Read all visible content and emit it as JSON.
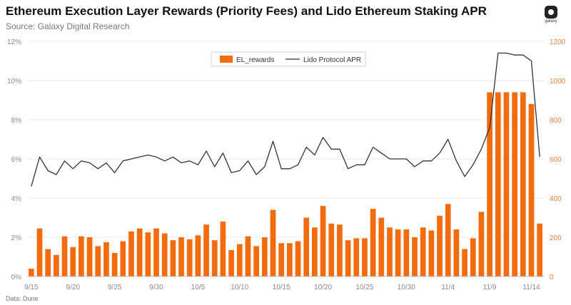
{
  "header": {
    "title": "Ethereum Execution Layer Rewards (Priority Fees) and Lido Ethereum Staking APR",
    "subtitle": "Source: Galaxy Digital Research",
    "logo_text": "galaxy",
    "data_note": "Data: Dune"
  },
  "colors": {
    "bar": "#F26B0F",
    "line": "#333333",
    "axis_text": "#888888",
    "right_axis_text": "#E8833A",
    "grid": "#e8e8e8"
  },
  "chart_data": {
    "type": "bar+line",
    "legend_position": "top-center",
    "grid": true,
    "legend": [
      "EL_rewards",
      "Lido Protocol APR"
    ],
    "left_axis": {
      "ticks": [
        "0%",
        "2%",
        "4%",
        "6%",
        "8%",
        "10%",
        "12%"
      ],
      "range": [
        0,
        12
      ]
    },
    "right_axis": {
      "ticks": [
        "0",
        "200",
        "400",
        "600",
        "800",
        "1000",
        "1200"
      ],
      "range": [
        0,
        1200
      ]
    },
    "x_tick_labels": [
      "9/15",
      "9/20",
      "9/25",
      "9/30",
      "10/5",
      "10/10",
      "10/15",
      "10/20",
      "10/25",
      "10/30",
      "11/4",
      "11/9",
      "11/14"
    ],
    "x_tick_positions": [
      0,
      5,
      10,
      15,
      20,
      25,
      30,
      35,
      40,
      45,
      50,
      55,
      60
    ],
    "series": [
      {
        "name": "EL_rewards",
        "type": "bar",
        "axis": "right",
        "values": [
          40,
          245,
          140,
          110,
          205,
          150,
          205,
          200,
          155,
          175,
          120,
          180,
          230,
          245,
          225,
          245,
          220,
          185,
          200,
          190,
          210,
          265,
          185,
          280,
          135,
          165,
          205,
          155,
          200,
          340,
          170,
          170,
          180,
          300,
          250,
          360,
          270,
          265,
          185,
          195,
          195,
          345,
          300,
          250,
          240,
          240,
          200,
          250,
          235,
          310,
          370,
          240,
          140,
          195,
          330,
          940,
          940,
          940,
          940,
          940,
          880,
          270
        ]
      },
      {
        "name": "Lido Protocol APR",
        "type": "line",
        "axis": "left",
        "values": [
          4.6,
          6.1,
          5.4,
          5.2,
          5.9,
          5.5,
          5.9,
          5.8,
          5.5,
          5.8,
          5.3,
          5.9,
          6.0,
          6.1,
          6.2,
          6.1,
          5.9,
          6.1,
          5.8,
          5.9,
          5.7,
          6.4,
          5.6,
          6.3,
          5.3,
          5.4,
          5.9,
          5.2,
          5.6,
          6.9,
          5.5,
          5.5,
          5.7,
          6.6,
          6.2,
          7.1,
          6.5,
          6.5,
          5.5,
          5.7,
          5.7,
          6.6,
          6.3,
          6.0,
          6.0,
          6.0,
          5.6,
          5.9,
          5.9,
          6.3,
          7.0,
          5.9,
          5.1,
          5.7,
          6.5,
          7.6,
          11.4,
          11.4,
          11.3,
          11.3,
          11.0,
          6.1
        ]
      }
    ]
  }
}
